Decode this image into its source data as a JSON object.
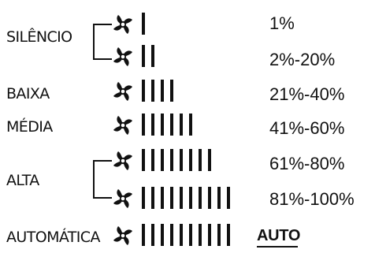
{
  "rows": [
    {
      "id": "silencio-1",
      "bars": 1,
      "percent": "1%"
    },
    {
      "id": "silencio-2",
      "bars": 2,
      "percent": "2%-20%"
    },
    {
      "id": "baixa",
      "bars": 4,
      "percent": "21%-40%"
    },
    {
      "id": "media",
      "bars": 6,
      "percent": "41%-60%"
    },
    {
      "id": "alta-1",
      "bars": 8,
      "percent": "61%-80%"
    },
    {
      "id": "alta-2",
      "bars": 10,
      "percent": "81%-100%"
    },
    {
      "id": "automatica",
      "bars": 10,
      "percent": ""
    }
  ],
  "modes": {
    "silencio": "SILÊNCIO",
    "baixa": "BAIXA",
    "media": "MÉDIA",
    "alta": "ALTA",
    "automatica": "AUTOMÁTICA"
  },
  "auto_badge": "AUTO",
  "icons": {
    "fan": "fan-icon"
  },
  "colors": {
    "ink": "#111111",
    "background": "#ffffff"
  }
}
